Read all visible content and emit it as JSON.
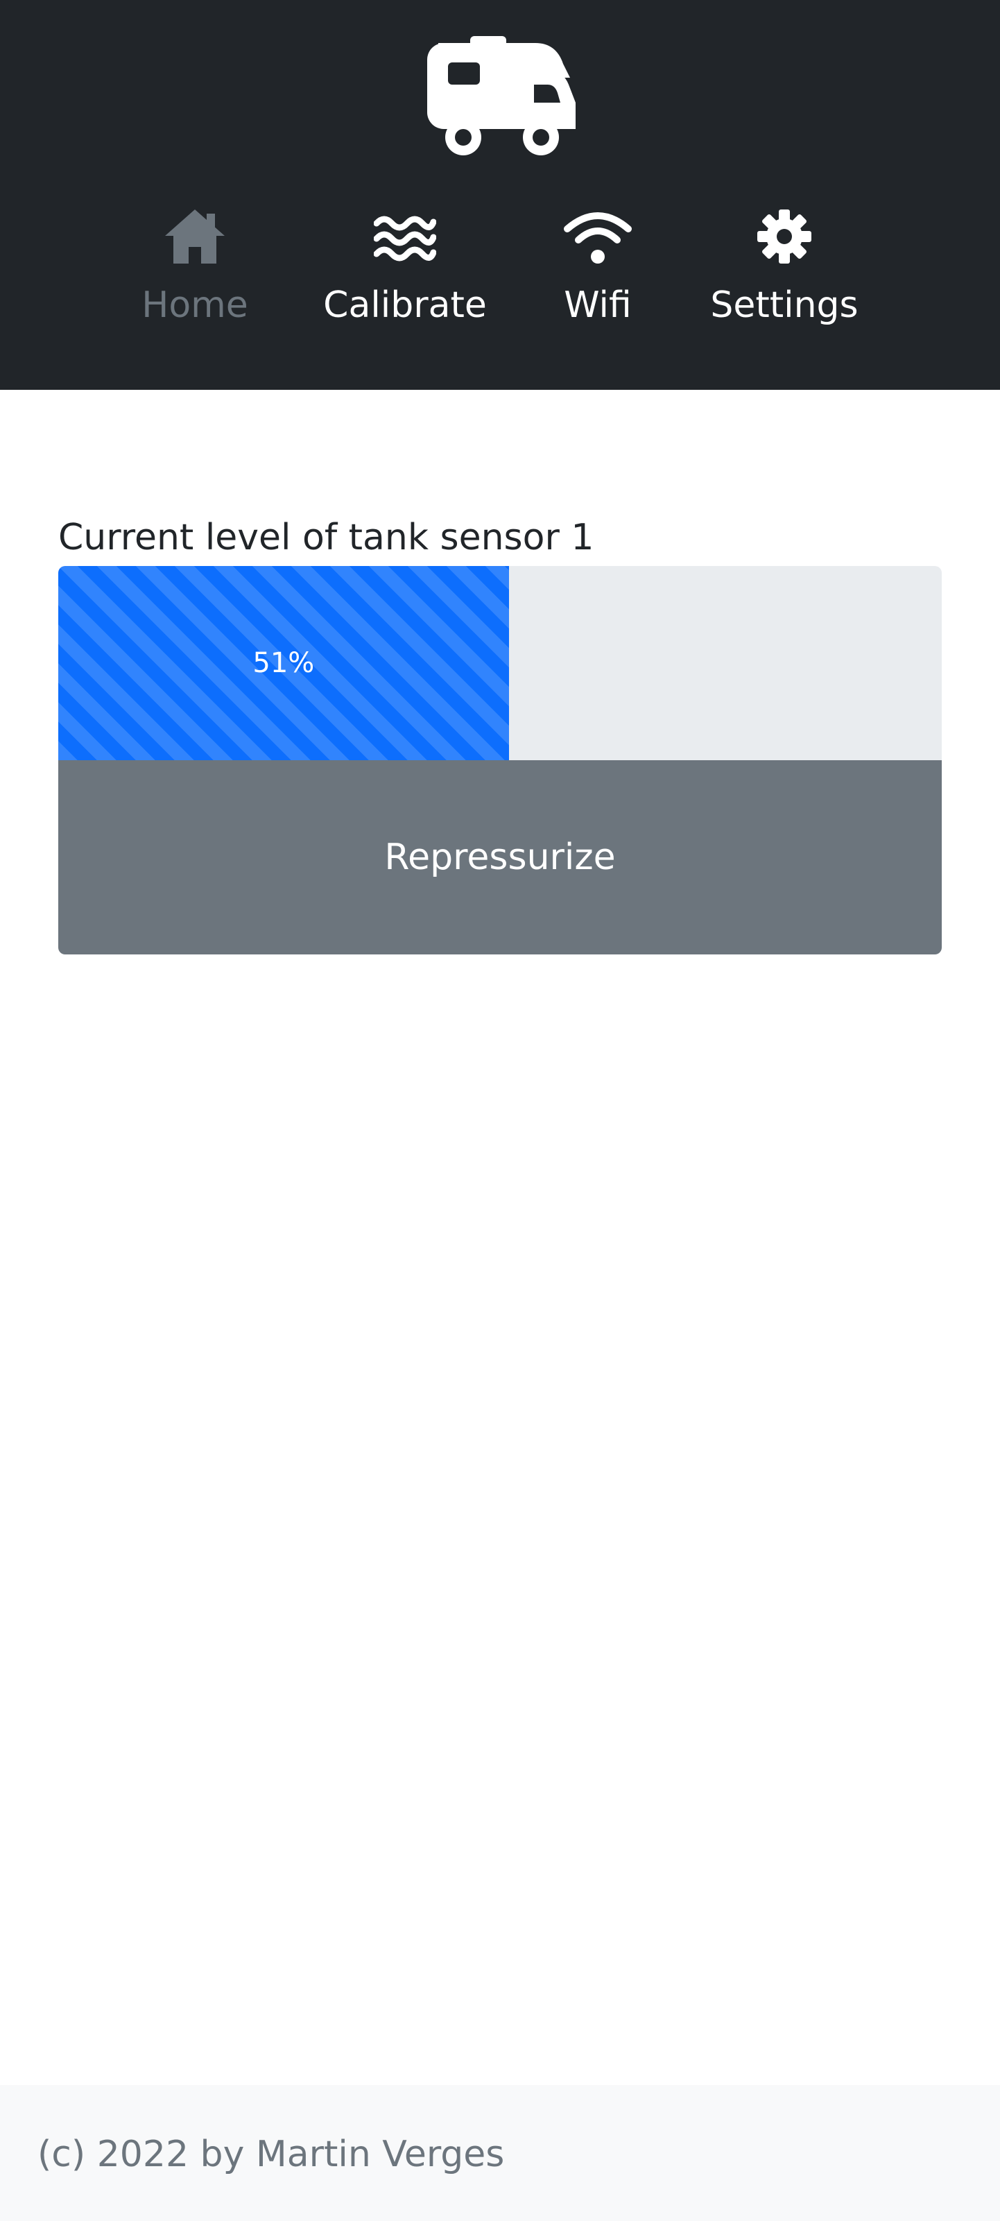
{
  "header": {
    "logo_icon": "caravan-icon",
    "nav": [
      {
        "label": "Home",
        "icon": "home-icon",
        "active": true
      },
      {
        "label": "Calibrate",
        "icon": "water-waves-icon",
        "active": false
      },
      {
        "label": "Wifi",
        "icon": "wifi-icon",
        "active": false
      },
      {
        "label": "Settings",
        "icon": "gear-icon",
        "active": false
      }
    ]
  },
  "main": {
    "sensor_label": "Current level of tank sensor 1",
    "level_percent": 51,
    "level_text": "51%",
    "repressurize_label": "Repressurize"
  },
  "footer": {
    "text": "(c) 2022 by Martin Verges"
  },
  "colors": {
    "header_bg": "#212529",
    "active_nav": "#6c757d",
    "progress_fill": "#0d6efd",
    "progress_track": "#e9ecef",
    "button_bg": "#6c757d",
    "footer_bg": "#f8f9fa"
  }
}
